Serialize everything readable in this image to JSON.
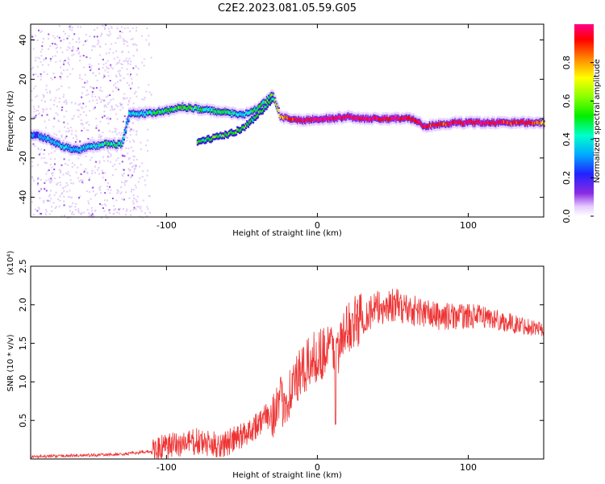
{
  "title": "C2E2.2023.081.05.59.G05",
  "chart_data": [
    {
      "type": "heatmap",
      "xlabel": "Height of straight line (km)",
      "ylabel": "Frequency (Hz)",
      "xlim": [
        -190,
        150
      ],
      "ylim": [
        -50,
        48
      ],
      "xticks": [
        -100,
        0,
        100
      ],
      "yticks": [
        -40,
        -20,
        0,
        20,
        40
      ],
      "colorbar": {
        "label": "Normalized spectral amplitude",
        "range": [
          0,
          1
        ],
        "ticks": [
          "0.0",
          "0.2",
          "0.4",
          "0.6",
          "0.8"
        ],
        "colormap": "rainbow"
      },
      "ridge": {
        "x": [
          -190,
          -180,
          -170,
          -160,
          -150,
          -140,
          -130,
          -125,
          -120,
          -110,
          -100,
          -90,
          -80,
          -70,
          -60,
          -50,
          -40,
          -30,
          -25,
          -20,
          -10,
          0,
          10,
          20,
          30,
          40,
          50,
          60,
          65,
          70,
          80,
          90,
          100,
          110,
          120,
          130,
          140,
          150
        ],
        "freq": [
          -8,
          -10,
          -14,
          -16,
          -14,
          -13,
          -13,
          3,
          2,
          3,
          4,
          6,
          5,
          4,
          3,
          2,
          5,
          12,
          1,
          0,
          -1,
          0,
          0,
          1,
          0,
          0,
          0,
          0,
          -1,
          -4,
          -3,
          -2,
          -2,
          -2,
          -2,
          -2,
          -2,
          -2
        ],
        "amplitude": [
          0.2,
          0.3,
          0.35,
          0.3,
          0.35,
          0.4,
          0.4,
          0.3,
          0.35,
          0.4,
          0.45,
          0.5,
          0.45,
          0.4,
          0.4,
          0.35,
          0.45,
          0.5,
          0.7,
          0.85,
          0.9,
          0.95,
          0.95,
          0.9,
          0.95,
          0.9,
          0.95,
          0.9,
          0.85,
          0.9,
          0.85,
          0.9,
          0.9,
          0.9,
          0.9,
          0.85,
          0.85,
          0.7
        ]
      },
      "secondary_branch": {
        "x": [
          -80,
          -70,
          -60,
          -50,
          -40,
          -30
        ],
        "freq": [
          -12,
          -10,
          -8,
          -5,
          2,
          10
        ]
      }
    },
    {
      "type": "line",
      "xlabel": "Height of straight line (km)",
      "ylabel": "SNR (10 * v/v)",
      "multiplier": "(x10⁴)",
      "xlim": [
        -190,
        150
      ],
      "ylim": [
        0,
        2.5
      ],
      "xticks": [
        -100,
        0,
        100
      ],
      "yticks": [
        "0.5",
        "1.0",
        "1.5",
        "2.0",
        "2.5"
      ],
      "color": "#ee3333",
      "series": [
        {
          "x": [
            -190,
            -170,
            -150,
            -130,
            -120,
            -110,
            -100,
            -90,
            -80,
            -70,
            -60,
            -50,
            -40,
            -30,
            -20,
            -15,
            -10,
            -5,
            0,
            5,
            10,
            15,
            20,
            30,
            40,
            50,
            60,
            70,
            80,
            90,
            100,
            110,
            120,
            130,
            140,
            150
          ],
          "values": [
            0.03,
            0.04,
            0.05,
            0.06,
            0.08,
            0.1,
            0.15,
            0.2,
            0.22,
            0.18,
            0.2,
            0.3,
            0.45,
            0.6,
            0.8,
            1.0,
            1.1,
            1.25,
            1.35,
            1.4,
            1.45,
            1.45,
            1.7,
            1.85,
            1.95,
            2.0,
            1.95,
            1.9,
            1.85,
            1.85,
            1.85,
            1.85,
            1.8,
            1.75,
            1.72,
            1.68
          ]
        }
      ]
    }
  ]
}
